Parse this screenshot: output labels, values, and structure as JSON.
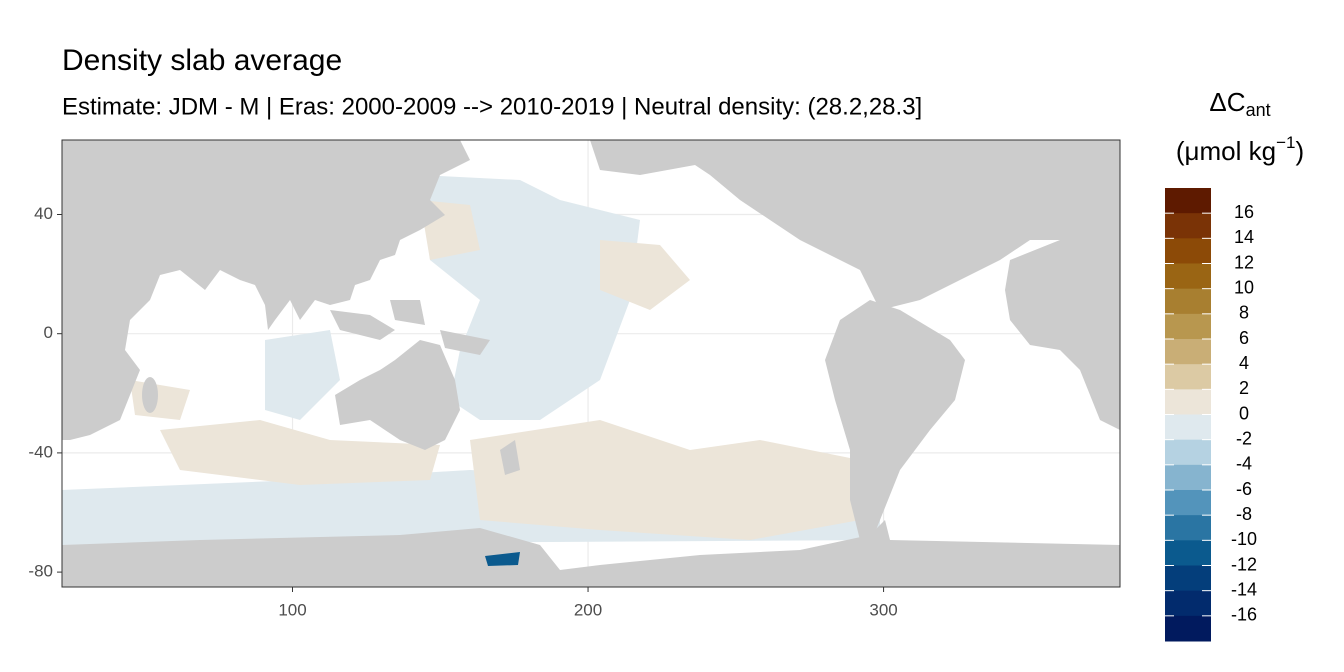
{
  "chart_data": {
    "type": "map",
    "title": "Density slab average",
    "subtitle": "Estimate: JDM - M | Eras: 2000-2009 --> 2010-2019 | Neutral density: (28.2,28.3]",
    "xlim": [
      22,
      380
    ],
    "ylim": [
      -85,
      65
    ],
    "xticks": [
      100,
      200,
      300
    ],
    "yticks": [
      40,
      0,
      -40,
      -80
    ],
    "grid": true,
    "legend_title": {
      "symbol": "ΔC",
      "subscript": "ant",
      "unit": "(μmol kg",
      "exponent": "−1",
      "close": ")"
    },
    "colorbar": {
      "lim": [
        -18,
        18
      ],
      "ticks": [
        16,
        14,
        12,
        10,
        8,
        6,
        4,
        2,
        0,
        -2,
        -4,
        -6,
        -8,
        -10,
        -12,
        -14,
        -16
      ],
      "colors": [
        "#5e1a00",
        "#7a3306",
        "#8c4a07",
        "#9a6514",
        "#a87f30",
        "#b8974f",
        "#c9ae76",
        "#dccaa4",
        "#ece5d9",
        "#dfe9ee",
        "#b5d2e2",
        "#86b4cf",
        "#5394bb",
        "#2a75a3",
        "#0b5a8e",
        "#043e7b",
        "#022b6d",
        "#011a5e"
      ]
    }
  }
}
